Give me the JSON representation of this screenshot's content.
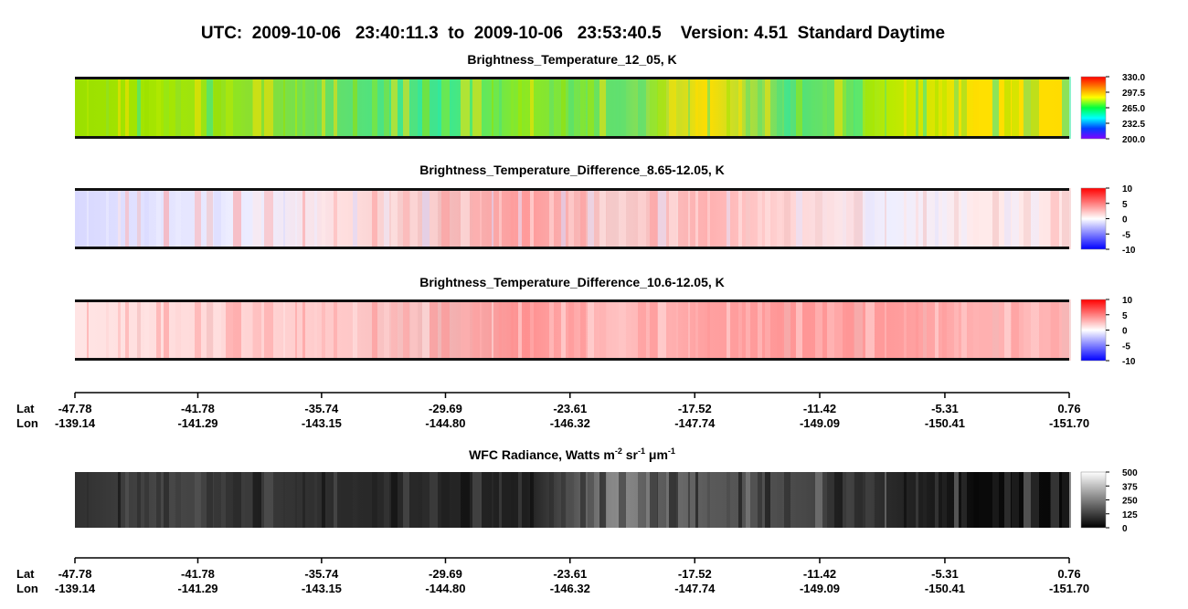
{
  "title": "UTC:  2009-10-06   23:40:11.3  to  2009-10-06   23:53:40.5    Version: 4.51  Standard Daytime",
  "panels": [
    {
      "title": [
        "Brightness_Temperature_12_05, K"
      ],
      "clim": [
        200,
        330
      ],
      "cticks": [
        {
          "value": 200,
          "label": "200.0"
        },
        {
          "value": 232.5,
          "label": "232.5"
        },
        {
          "value": 265,
          "label": "265.0"
        },
        {
          "value": 297.5,
          "label": "297.5"
        },
        {
          "value": 330,
          "label": "330.0"
        }
      ],
      "colors": [
        "#8000ff",
        "#0040ff",
        "#00ffff",
        "#00ff40",
        "#ffff00",
        "#ff8000",
        "#ff0000"
      ]
    },
    {
      "title": [
        "Brightness_Temperature_Difference_8.65-12.05, K"
      ],
      "clim": [
        -10,
        10
      ],
      "cticks": [
        -10,
        -5,
        0,
        5,
        10
      ],
      "colors": [
        "#0000ff",
        "#ffffff",
        "#ff0000"
      ]
    },
    {
      "title": [
        "Brightness_Temperature_Difference_10.6-12.05, K"
      ],
      "clim": [
        -10,
        10
      ],
      "cticks": [
        -10,
        -5,
        0,
        5,
        10
      ],
      "colors": [
        "#0000ff",
        "#ffffff",
        "#ff0000"
      ]
    },
    {
      "title": [
        "WFC Radiance, Watts m",
        "-2",
        " sr",
        "-1",
        " μm",
        "-1"
      ],
      "clim": [
        0,
        500
      ],
      "cticks": [
        0,
        125,
        250,
        375,
        500
      ],
      "colors": [
        "#000000",
        "#ffffff"
      ]
    }
  ],
  "axis": {
    "lat_label": "Lat",
    "lon_label": "Lon",
    "xlim": [
      -47.78,
      0.76
    ],
    "lat": [
      -47.78,
      -41.78,
      -35.74,
      -29.69,
      -23.61,
      -17.52,
      -11.42,
      -5.31,
      0.76
    ],
    "lon": [
      -139.14,
      -141.29,
      -143.15,
      {
        "value": -144.8,
        "label": "-144.80"
      },
      -146.32,
      -147.74,
      -149.09,
      -150.41,
      {
        "value": -151.7,
        "label": "-151.70"
      }
    ]
  }
}
